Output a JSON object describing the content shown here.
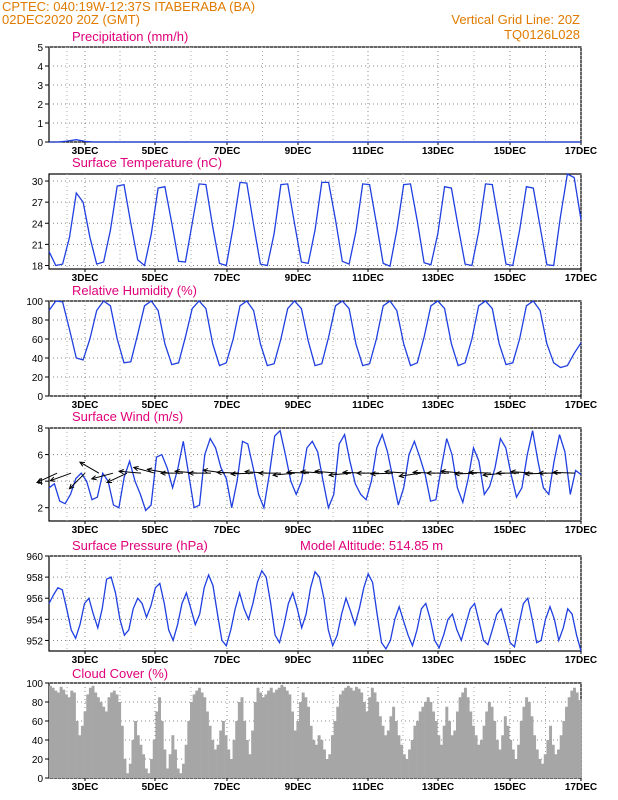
{
  "header": {
    "line1_left": "CPTEC:   040:19W-12:37S   ITABERABA (BA)",
    "line2_left": "02DEC2020  20Z (GMT)",
    "line1_right": "Vertical Grid Line: 20Z",
    "line2_right": "TQ0126L028"
  },
  "colors": {
    "header": "#e07b00",
    "title": "#e0007a",
    "series": "#1f3fe0",
    "cloud": "#a6a6a6",
    "arrow": "#000000"
  },
  "chart_data": [
    {
      "type": "line",
      "title": "Precipitation (mm/h)",
      "ylim": [
        0,
        5
      ],
      "yticks": [
        "0",
        "1",
        "2",
        "3",
        "4",
        "5"
      ],
      "xticks": [
        "3DEC",
        "5DEC",
        "7DEC",
        "9DEC",
        "11DEC",
        "13DEC",
        "15DEC",
        "17DEC"
      ],
      "series": [
        {
          "values": [
            0,
            0,
            0.05,
            0.12,
            0.03,
            0,
            0,
            0,
            0,
            0,
            0,
            0,
            0,
            0,
            0,
            0,
            0,
            0,
            0,
            0,
            0,
            0,
            0,
            0,
            0,
            0,
            0,
            0,
            0,
            0,
            0,
            0,
            0,
            0,
            0,
            0,
            0,
            0,
            0,
            0,
            0,
            0,
            0,
            0,
            0,
            0,
            0,
            0,
            0,
            0,
            0,
            0,
            0,
            0,
            0,
            0,
            0,
            0,
            0,
            0
          ]
        }
      ]
    },
    {
      "type": "line",
      "title": "Surface Temperature (nC)",
      "ylim": [
        17.5,
        31
      ],
      "yticks": [
        "18",
        "21",
        "24",
        "27",
        "30"
      ],
      "xticks": [
        "3DEC",
        "5DEC",
        "7DEC",
        "9DEC",
        "11DEC",
        "13DEC",
        "15DEC",
        "17DEC"
      ],
      "series": [
        {
          "values": [
            20.0,
            18.0,
            18.2,
            22.0,
            28.3,
            27.0,
            22.0,
            18.2,
            18.5,
            23.0,
            29.3,
            29.5,
            24.0,
            18.8,
            18.0,
            22.5,
            29.0,
            29.2,
            24.0,
            18.6,
            18.5,
            24.0,
            29.6,
            29.5,
            23.5,
            18.3,
            18.0,
            23.5,
            29.8,
            29.7,
            23.8,
            18.2,
            18.0,
            22.5,
            29.5,
            29.6,
            24.0,
            18.5,
            18.3,
            23.0,
            29.8,
            29.8,
            24.5,
            18.6,
            18.2,
            22.8,
            29.6,
            29.5,
            24.0,
            18.3,
            17.9,
            23.0,
            29.5,
            29.6,
            24.3,
            18.4,
            18.1,
            22.5,
            29.2,
            29.0,
            23.5,
            18.2,
            18.0,
            22.8,
            29.6,
            29.5,
            23.8,
            18.2,
            18.0,
            23.0,
            29.2,
            29.0,
            23.5,
            18.1,
            18.0,
            25.0,
            31.0,
            30.5,
            24.5
          ]
        }
      ]
    },
    {
      "type": "line",
      "title": "Relative Humidity (%)",
      "ylim": [
        0,
        100
      ],
      "yticks": [
        "0",
        "20",
        "40",
        "60",
        "80",
        "100"
      ],
      "xticks": [
        "3DEC",
        "5DEC",
        "7DEC",
        "9DEC",
        "11DEC",
        "13DEC",
        "15DEC",
        "17DEC"
      ],
      "series": [
        {
          "values": [
            90,
            100,
            99,
            70,
            40,
            38,
            60,
            90,
            100,
            95,
            60,
            35,
            36,
            65,
            95,
            100,
            90,
            55,
            33,
            35,
            62,
            92,
            100,
            92,
            55,
            32,
            35,
            60,
            95,
            100,
            90,
            55,
            32,
            34,
            60,
            92,
            100,
            92,
            58,
            32,
            34,
            62,
            95,
            100,
            92,
            55,
            32,
            34,
            60,
            95,
            100,
            90,
            55,
            32,
            35,
            62,
            95,
            100,
            92,
            55,
            32,
            35,
            60,
            95,
            100,
            92,
            55,
            33,
            35,
            60,
            95,
            100,
            90,
            55,
            35,
            30,
            32,
            45,
            56
          ]
        }
      ]
    },
    {
      "type": "line",
      "title": "Surface Wind (m/s)",
      "ylim": [
        1,
        8
      ],
      "yticks": [
        "2",
        "4",
        "6",
        "8"
      ],
      "xticks": [
        "3DEC",
        "5DEC",
        "7DEC",
        "9DEC",
        "11DEC",
        "13DEC",
        "15DEC",
        "17DEC"
      ],
      "series": [
        {
          "values": [
            3.5,
            3.8,
            2.5,
            2.3,
            3.0,
            4.2,
            4.6,
            4.0,
            2.6,
            2.8,
            4.6,
            4.0,
            2.2,
            2.0,
            4.3,
            5.5,
            4.0,
            3.0,
            1.8,
            2.2,
            5.8,
            6.0,
            5.0,
            3.5,
            5.0,
            7.0,
            4.5,
            2.0,
            2.2,
            6.0,
            7.2,
            6.5,
            5.0,
            4.2,
            2.0,
            4.0,
            7.0,
            6.8,
            5.0,
            3.0,
            2.0,
            4.5,
            7.4,
            7.8,
            6.0,
            4.0,
            3.0,
            4.0,
            6.5,
            7.0,
            6.2,
            4.0,
            2.0,
            3.0,
            6.8,
            7.5,
            5.5,
            3.8,
            3.0,
            2.6,
            4.0,
            6.5,
            7.5,
            6.2,
            4.2,
            2.2,
            3.5,
            6.0,
            7.0,
            5.8,
            4.5,
            2.5,
            2.6,
            5.0,
            7.2,
            6.0,
            3.5,
            2.4,
            4.2,
            6.5,
            5.5,
            3.0,
            3.6,
            5.0,
            7.2,
            6.5,
            4.5,
            2.8,
            3.5,
            6.0,
            7.8,
            5.5,
            3.5,
            3.0,
            5.5,
            7.5,
            6.2,
            3.0,
            4.8,
            4.5
          ]
        }
      ],
      "wind_arrows": {
        "y_level": 4.6,
        "count": 38,
        "directions_deg": [
          205,
          200,
          225,
          150,
          195,
          205,
          175,
          165,
          170,
          180,
          175,
          180,
          172,
          178,
          182,
          176,
          180,
          185,
          178,
          176,
          175,
          185,
          178,
          180,
          182,
          176,
          188,
          178,
          180,
          175,
          182,
          178,
          185,
          180,
          176,
          182,
          180,
          178
        ]
      }
    },
    {
      "type": "line",
      "title": "Surface Pressure (hPa)",
      "annotation": "Model Altitude: 514.85 m",
      "ylim": [
        951,
        960
      ],
      "yticks": [
        "952",
        "954",
        "956",
        "958",
        "960"
      ],
      "xticks": [
        "3DEC",
        "5DEC",
        "7DEC",
        "9DEC",
        "11DEC",
        "13DEC",
        "15DEC",
        "17DEC"
      ],
      "series": [
        {
          "values": [
            955.5,
            956.3,
            957.0,
            956.8,
            955.0,
            953.0,
            952.2,
            953.5,
            955.5,
            956.0,
            954.5,
            953.2,
            955.0,
            957.8,
            958.0,
            956.5,
            954.0,
            952.5,
            953.0,
            955.0,
            956.0,
            955.5,
            954.2,
            955.3,
            957.0,
            957.4,
            955.5,
            953.0,
            952.0,
            953.5,
            955.5,
            956.5,
            955.0,
            953.5,
            954.5,
            957.0,
            958.2,
            957.2,
            954.5,
            952.0,
            951.5,
            953.0,
            955.0,
            956.5,
            955.0,
            954.0,
            955.5,
            957.5,
            958.6,
            958.0,
            955.5,
            952.5,
            951.8,
            953.5,
            955.5,
            956.5,
            955.0,
            953.2,
            954.5,
            957.0,
            958.5,
            958.0,
            956.0,
            953.0,
            951.5,
            952.5,
            954.5,
            956.0,
            954.8,
            953.5,
            955.0,
            957.0,
            958.3,
            957.5,
            954.5,
            951.8,
            951.2,
            952.0,
            954.0,
            955.2,
            953.8,
            952.5,
            951.5,
            953.0,
            955.0,
            955.5,
            954.0,
            952.0,
            951.3,
            952.5,
            954.0,
            954.5,
            953.0,
            952.0,
            953.5,
            955.0,
            955.5,
            953.8,
            952.0,
            951.6,
            953.0,
            954.5,
            955.0,
            953.5,
            951.8,
            951.4,
            953.5,
            955.5,
            956.0,
            954.0,
            951.8,
            952.0,
            954.0,
            955.2,
            954.0,
            952.0,
            953.2,
            955.0,
            954.5,
            952.5,
            951.0
          ]
        }
      ]
    },
    {
      "type": "area",
      "title": "Cloud Cover (%)",
      "ylim": [
        0,
        100
      ],
      "yticks": [
        "0",
        "20",
        "40",
        "60",
        "80",
        "100"
      ],
      "xticks": [
        "3DEC",
        "5DEC",
        "7DEC",
        "9DEC",
        "11DEC",
        "13DEC",
        "15DEC",
        "17DEC"
      ],
      "series": [
        {
          "values": [
            97,
            95,
            92,
            90,
            96,
            93,
            88,
            85,
            92,
            90,
            60,
            45,
            55,
            70,
            88,
            95,
            97,
            90,
            85,
            80,
            75,
            70,
            85,
            90,
            92,
            88,
            80,
            55,
            20,
            5,
            15,
            40,
            60,
            45,
            35,
            25,
            10,
            5,
            20,
            40,
            70,
            85,
            60,
            30,
            10,
            25,
            45,
            30,
            10,
            5,
            15,
            35,
            60,
            80,
            88,
            92,
            95,
            90,
            85,
            70,
            55,
            40,
            30,
            35,
            50,
            60,
            45,
            30,
            20,
            40,
            60,
            80,
            85,
            60,
            40,
            25,
            50,
            80,
            95,
            90,
            85,
            88,
            92,
            95,
            90,
            93,
            95,
            98,
            96,
            92,
            88,
            70,
            50,
            60,
            80,
            90,
            85,
            75,
            55,
            40,
            35,
            45,
            40,
            30,
            20,
            25,
            45,
            60,
            75,
            88,
            92,
            95,
            97,
            95,
            92,
            96,
            94,
            90,
            80,
            70,
            85,
            95,
            90,
            80,
            65,
            55,
            45,
            50,
            65,
            75,
            60,
            45,
            35,
            25,
            20,
            30,
            40,
            55,
            60,
            70,
            75,
            80,
            85,
            80,
            70,
            60,
            45,
            35,
            55,
            75,
            60,
            45,
            50,
            70,
            85,
            90,
            95,
            85,
            70,
            55,
            45,
            35,
            40,
            55,
            70,
            80,
            75,
            60,
            40,
            30,
            45,
            65,
            55,
            40,
            30,
            20,
            35,
            60,
            75,
            85,
            80,
            65,
            45,
            30,
            20,
            15,
            25,
            40,
            55,
            35,
            25,
            30,
            45,
            60,
            75,
            85,
            92,
            95,
            90,
            82
          ]
        }
      ]
    }
  ]
}
